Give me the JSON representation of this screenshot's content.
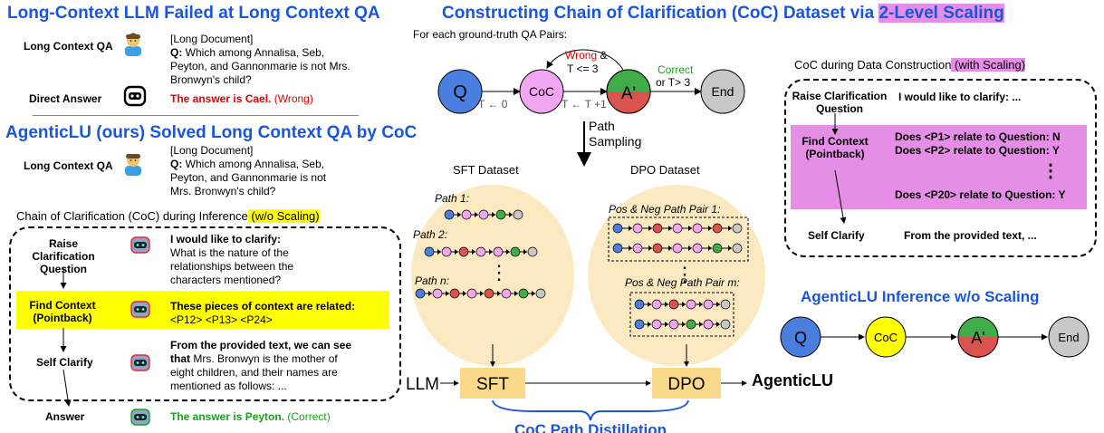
{
  "left_top": {
    "title": "Long-Context LLM Failed at Long Context QA",
    "qa_label": "Long Context QA",
    "doc": "[Long Document]",
    "q_prefix": "Q:",
    "q_line1": " Which among Annalisa, Seb,",
    "q_line2": "Peyton, and Gannonmarie is not Mrs.",
    "q_line3": "Bronwyn's child?",
    "direct_label": "Direct Answer",
    "direct_answer": "The answer is Cael.",
    "direct_verdict": " (Wrong)"
  },
  "left_bottom": {
    "title": "AgenticLU (ours) Solved Long Context QA by CoC",
    "qa_label": "Long Context QA",
    "doc": "[Long Document]",
    "q_prefix": "Q:",
    "q_line1": " Which among Annalisa, Seb,",
    "q_line2": "Peyton, and Gannonmarie is not",
    "q_line3": "Mrs. Bronwyn's child?",
    "coc_header": "Chain of Clarification (CoC) during Inference",
    "coc_header_hl": " (w/o Scaling)",
    "step1_label": "Raise Clarification Question",
    "step1_bold": "I would like to clarify:",
    "step1_l1": "What is the nature of the",
    "step1_l2": "relationships between the",
    "step1_l3": "characters mentioned?",
    "step2_label": "Find Context (Pointback)",
    "step2_bold": "These pieces of context are related:",
    "step2_refs": "<P12> <P13> <P24>",
    "step3_label": "Self Clarify",
    "step3_bold1": "From the provided text, we can see",
    "step3_bold2": "that",
    "step3_l2": " Mrs. Bronwyn is the mother of",
    "step3_l3": "eight children, and their names are",
    "step3_l4": "mentioned as follows: ...",
    "answer_label": "Answer",
    "answer_text": "The answer is Peyton.",
    "answer_verdict": " (Correct)"
  },
  "middle": {
    "title_prefix": "Constructing Chain of Clarification (CoC) Dataset via ",
    "title_hl": "2-Level Scaling",
    "for_each": "For each ground-truth QA Pairs:",
    "node_q": "Q",
    "node_coc": "CoC",
    "node_a": "A'",
    "node_end": "End",
    "edge_t0": "T ← 0",
    "edge_tinc": "T ← T +1",
    "wrong": "Wrong",
    "wrong_tail": " &",
    "wrong_cond": "T <= 3",
    "correct": "Correct",
    "correct_cond": "or T> 3",
    "path_sampling_1": "Path",
    "path_sampling_2": "Sampling",
    "sft_dataset": "SFT Dataset",
    "dpo_dataset": "DPO Dataset",
    "path1": "Path 1:",
    "path2": "Path 2:",
    "pathn": "Path n:",
    "pair1": "Pos & Neg Path Pair 1:",
    "pairm": "Pos & Neg Path Pair m:",
    "vdots": "⋮",
    "llm": "LLM",
    "sft": "SFT",
    "dpo": "DPO",
    "agenticlu": "AgenticLU",
    "distill": "CoC Path Distillation"
  },
  "right": {
    "header": "CoC during Data Construction",
    "header_hl": " (with Scaling)",
    "step1_label": "Raise Clarification Question",
    "step1_text": "I would like to clarify: ...",
    "step2_label": "Find Context (Pointback)",
    "rel1": "Does <P1> relate to Question: N",
    "rel2": "Does <P2> relate to Question: Y",
    "rel_dots": "⋮",
    "rel20": "Does <P20> relate to Question: Y",
    "step3_label": "Self Clarify",
    "step3_text": "From the provided text, ...",
    "inference_title": "AgenticLU Inference w/o Scaling",
    "node_q": "Q",
    "node_coc": "CoC",
    "node_a": "A'",
    "node_end": "End"
  },
  "colors": {
    "blue_title": "#1a56db",
    "yellow_hl": "#ffff00",
    "purple_hl": "#e58ee5",
    "node_q": "#4a7fe0",
    "node_coc": "#f2a6f2",
    "node_a_green": "#3fae49",
    "node_a_red": "#d9534f",
    "node_end": "#c8c8c8",
    "dataset_bg": "#fbe9c2",
    "box_bg": "#fbd98a"
  }
}
